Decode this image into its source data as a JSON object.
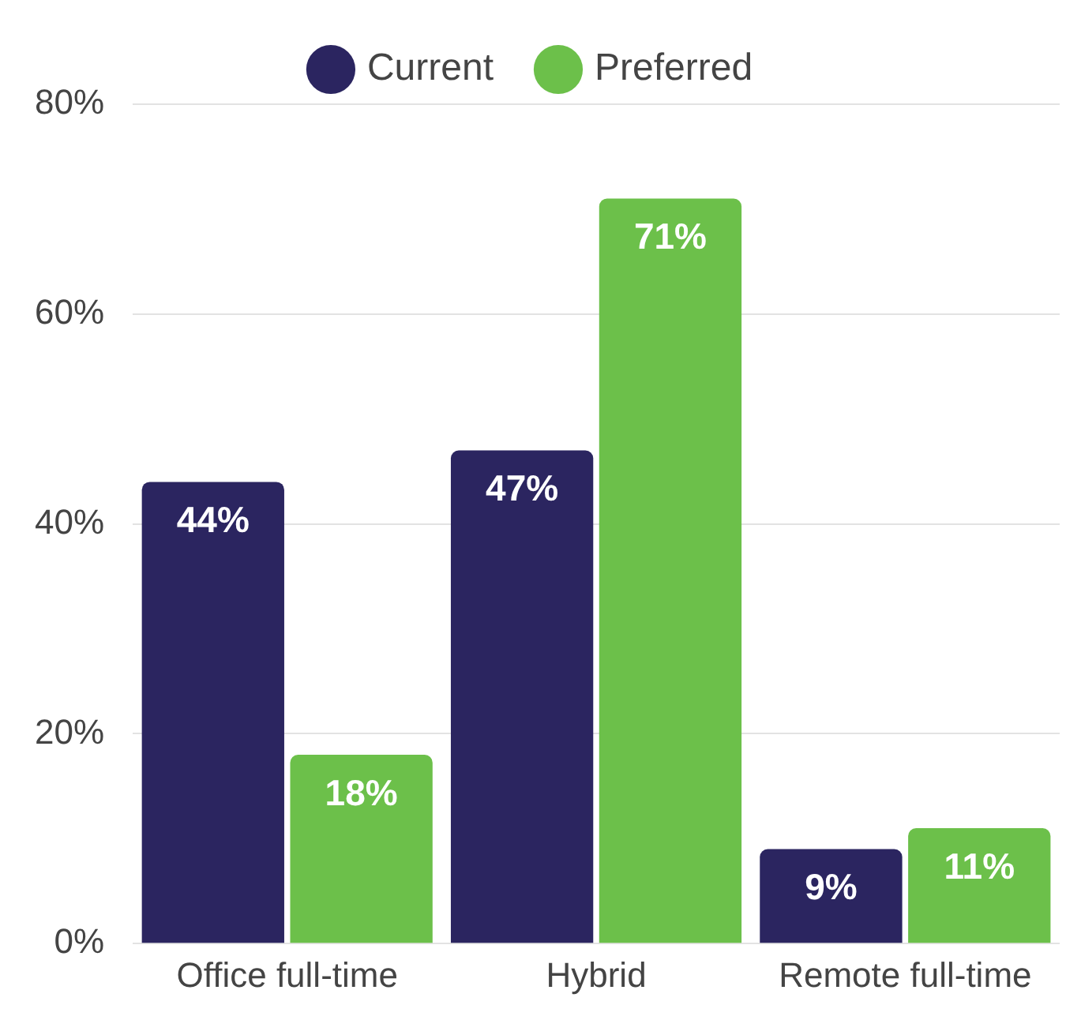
{
  "chart_data": {
    "type": "bar",
    "categories": [
      "Office full-time",
      "Hybrid",
      "Remote full-time"
    ],
    "series": [
      {
        "name": "Current",
        "color": "#2b2560",
        "values": [
          44,
          47,
          9
        ],
        "value_labels": [
          "44%",
          "47%",
          "9%"
        ]
      },
      {
        "name": "Preferred",
        "color": "#6cc04a",
        "values": [
          18,
          71,
          11
        ],
        "value_labels": [
          "18%",
          "71%",
          "11%"
        ]
      }
    ],
    "ylim": [
      0,
      80
    ],
    "yticks": [
      {
        "value": 0,
        "label": "0%"
      },
      {
        "value": 20,
        "label": "20%"
      },
      {
        "value": 40,
        "label": "40%"
      },
      {
        "value": 60,
        "label": "60%"
      },
      {
        "value": 80,
        "label": "80%"
      }
    ],
    "grid": "y",
    "legend": "top"
  }
}
